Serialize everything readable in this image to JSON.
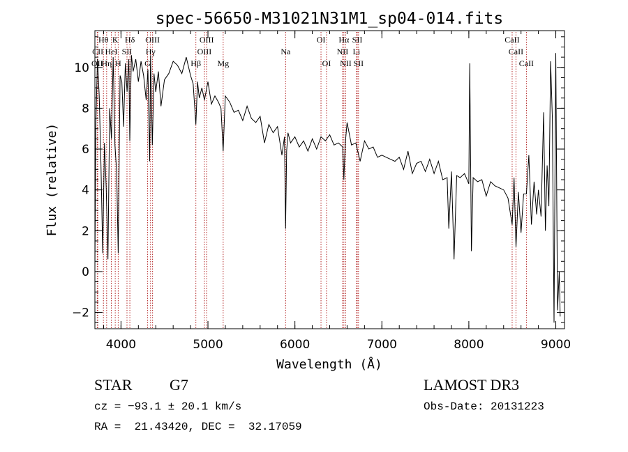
{
  "colors": {
    "axis": "#000000",
    "spectrum": "#000000",
    "line_markers": "#b22222",
    "background": "#ffffff"
  },
  "chart_data": {
    "type": "line",
    "title": "spec-56650-M31021N31M1_sp04-014.fits",
    "xlabel": "Wavelength (Å)",
    "ylabel": "Flux (relative)",
    "xlim": [
      3700,
      9100
    ],
    "ylim": [
      -2.8,
      11.8
    ],
    "xticks": [
      4000,
      5000,
      6000,
      7000,
      8000,
      9000
    ],
    "xtick_labels": [
      "4000",
      "5000",
      "6000",
      "7000",
      "8000",
      "9000"
    ],
    "yticks": [
      -2,
      0,
      2,
      4,
      6,
      8,
      10
    ],
    "ytick_labels": [
      "−2",
      "0",
      "2",
      "4",
      "6",
      "8",
      "10"
    ],
    "x_minor_step": 200,
    "y_minor_step": 0.5,
    "series": [
      {
        "name": "flux",
        "x": [
          3700,
          3710,
          3730,
          3750,
          3770,
          3790,
          3810,
          3830,
          3850,
          3870,
          3890,
          3910,
          3930,
          3950,
          3968,
          3990,
          4010,
          4030,
          4050,
          4070,
          4090,
          4101,
          4120,
          4140,
          4170,
          4200,
          4230,
          4260,
          4290,
          4310,
          4330,
          4340,
          4360,
          4380,
          4400,
          4430,
          4460,
          4500,
          4550,
          4600,
          4650,
          4700,
          4750,
          4800,
          4830,
          4861,
          4880,
          4900,
          4930,
          4960,
          5000,
          5040,
          5080,
          5120,
          5150,
          5175,
          5200,
          5250,
          5300,
          5350,
          5400,
          5450,
          5500,
          5550,
          5600,
          5650,
          5700,
          5750,
          5800,
          5850,
          5880,
          5893,
          5905,
          5920,
          5950,
          6000,
          6050,
          6100,
          6150,
          6200,
          6250,
          6300,
          6350,
          6400,
          6450,
          6500,
          6550,
          6563,
          6580,
          6600,
          6650,
          6700,
          6750,
          6800,
          6850,
          6900,
          6950,
          7000,
          7050,
          7100,
          7150,
          7200,
          7250,
          7300,
          7350,
          7400,
          7450,
          7500,
          7550,
          7600,
          7650,
          7700,
          7750,
          7770,
          7800,
          7830,
          7860,
          7900,
          7950,
          8000,
          8010,
          8030,
          8050,
          8100,
          8150,
          8200,
          8250,
          8300,
          8350,
          8400,
          8450,
          8498,
          8520,
          8542,
          8570,
          8600,
          8630,
          8662,
          8690,
          8720,
          8750,
          8780,
          8800,
          8830,
          8860,
          8880,
          8900,
          8920,
          8940,
          8960,
          8980,
          9000,
          9020,
          9040,
          9050
        ],
        "values": [
          0.1,
          7.0,
          10.4,
          8.6,
          5.2,
          0.9,
          6.3,
          4.1,
          0.6,
          8.0,
          6.5,
          10.5,
          6.2,
          4.9,
          0.9,
          9.6,
          9.3,
          7.1,
          10.2,
          8.8,
          10.4,
          6.4,
          10.6,
          9.8,
          10.4,
          9.3,
          10.3,
          9.6,
          8.4,
          9.9,
          5.4,
          10.6,
          6.2,
          9.7,
          8.8,
          9.8,
          8.1,
          9.4,
          9.7,
          10.3,
          10.1,
          9.7,
          10.5,
          9.6,
          9.2,
          7.2,
          9.3,
          8.5,
          9.0,
          8.4,
          9.3,
          8.2,
          8.6,
          8.3,
          8.0,
          5.9,
          8.6,
          8.3,
          7.8,
          7.9,
          7.4,
          8.1,
          7.5,
          7.3,
          7.6,
          6.3,
          7.2,
          6.8,
          7.1,
          5.7,
          6.6,
          2.1,
          5.9,
          6.8,
          6.3,
          6.6,
          6.1,
          6.4,
          5.9,
          6.5,
          6.0,
          6.6,
          6.4,
          6.7,
          6.2,
          6.3,
          6.1,
          4.5,
          6.3,
          7.3,
          6.2,
          6.3,
          5.4,
          6.4,
          6.0,
          6.1,
          5.6,
          5.7,
          5.6,
          5.5,
          5.4,
          5.6,
          5.0,
          5.9,
          4.8,
          5.3,
          5.4,
          4.9,
          5.5,
          4.8,
          5.4,
          4.5,
          4.6,
          2.1,
          4.9,
          0.6,
          4.7,
          4.6,
          4.8,
          4.3,
          10.2,
          1.0,
          4.6,
          4.4,
          4.5,
          3.7,
          4.4,
          4.2,
          4.1,
          4.0,
          3.6,
          2.3,
          4.6,
          1.2,
          3.9,
          1.9,
          3.8,
          3.8,
          5.7,
          2.3,
          4.4,
          2.8,
          4.0,
          2.7,
          7.8,
          2.0,
          5.2,
          3.2,
          10.3,
          7.5,
          -2.5,
          10.7,
          -1.9,
          0.0,
          -2.2
        ]
      }
    ],
    "line_ids": [
      {
        "label": "Hθ",
        "x": 3798,
        "row": 1
      },
      {
        "label": "OII",
        "x": 3727,
        "row": 3
      },
      {
        "label": "CII",
        "x": 3733,
        "row": 2
      },
      {
        "label": "Hη",
        "x": 3835,
        "row": 3
      },
      {
        "label": "HeI",
        "x": 3889,
        "row": 2
      },
      {
        "label": "K",
        "x": 3934,
        "row": 1
      },
      {
        "label": "H",
        "x": 3968,
        "row": 3
      },
      {
        "label": "SII",
        "x": 4069,
        "row": 2
      },
      {
        "label": "Hδ",
        "x": 4102,
        "row": 1
      },
      {
        "label": "OIII",
        "x": 4363,
        "row": 1
      },
      {
        "label": "Hγ",
        "x": 4340,
        "row": 2
      },
      {
        "label": "G",
        "x": 4305,
        "row": 3
      },
      {
        "label": "Hβ",
        "x": 4861,
        "row": 3
      },
      {
        "label": "OIII",
        "x": 4985,
        "row": 1
      },
      {
        "label": "OIII",
        "x": 4959,
        "row": 2
      },
      {
        "label": "Mg",
        "x": 5175,
        "row": 3
      },
      {
        "label": "Na",
        "x": 5893,
        "row": 2
      },
      {
        "label": "OI",
        "x": 6300,
        "row": 1
      },
      {
        "label": "OI",
        "x": 6364,
        "row": 3
      },
      {
        "label": "Hα",
        "x": 6563,
        "row": 1
      },
      {
        "label": "NII",
        "x": 6548,
        "row": 2
      },
      {
        "label": "NII",
        "x": 6584,
        "row": 3
      },
      {
        "label": "Li",
        "x": 6708,
        "row": 2
      },
      {
        "label": "SII",
        "x": 6717,
        "row": 1
      },
      {
        "label": "SII",
        "x": 6731,
        "row": 3
      },
      {
        "label": "CaII",
        "x": 8498,
        "row": 1
      },
      {
        "label": "CaII",
        "x": 8542,
        "row": 2
      },
      {
        "label": "CaII",
        "x": 8662,
        "row": 3
      }
    ]
  },
  "info": {
    "object_type": "STAR",
    "subclass": "G7",
    "cz_line": "cz = −93.1 ± 20.1 km/s",
    "coords_line": "RA =  21.43420, DEC =  32.17059",
    "survey": "LAMOST DR3",
    "obs_date_line": "Obs-Date: 20131223"
  }
}
